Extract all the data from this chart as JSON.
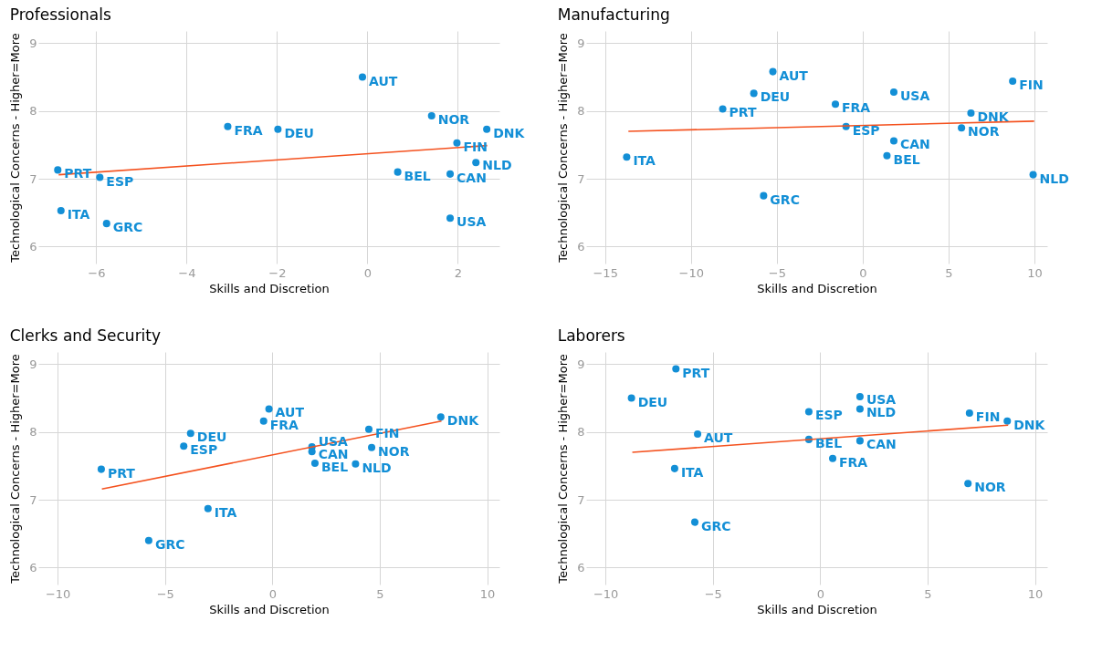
{
  "chart_data": [
    {
      "type": "scatter",
      "title": "Professionals",
      "xlabel": "Skills and Discretion",
      "ylabel": "Technological Concerns - Higher=More",
      "xlim": [
        -7.28,
        2.92
      ],
      "ylim": [
        5.75,
        9.18
      ],
      "xticks": [
        -6,
        -4,
        -2,
        0,
        2
      ],
      "yticks": [
        6,
        7,
        8,
        9
      ],
      "grid": true,
      "series": [
        {
          "marker": "circle",
          "color": "#138fd6",
          "x": [
            -6.85,
            -5.92,
            -6.78,
            -5.77,
            -3.09,
            -1.98,
            -0.11,
            1.42,
            2.64,
            1.98,
            2.4,
            0.67,
            1.83,
            1.83
          ],
          "values": [
            7.13,
            7.02,
            6.53,
            6.34,
            7.77,
            7.73,
            8.5,
            7.93,
            7.73,
            7.53,
            7.24,
            7.1,
            7.07,
            6.42
          ]
        },
        {
          "type": "line",
          "color": "#f4511e",
          "x": [
            -6.83,
            2.65
          ],
          "values": [
            7.06,
            7.49
          ]
        }
      ],
      "annotations": [
        {
          "text": "PRT",
          "x": -6.85,
          "y": 7.13
        },
        {
          "text": "ESP",
          "x": -5.92,
          "y": 7.02
        },
        {
          "text": "ITA",
          "x": -6.78,
          "y": 6.53
        },
        {
          "text": "GRC",
          "x": -5.77,
          "y": 6.34
        },
        {
          "text": "FRA",
          "x": -3.09,
          "y": 7.77
        },
        {
          "text": "DEU",
          "x": -1.98,
          "y": 7.73
        },
        {
          "text": "AUT",
          "x": -0.11,
          "y": 8.5
        },
        {
          "text": "NOR",
          "x": 1.42,
          "y": 7.93
        },
        {
          "text": "DNK",
          "x": 2.64,
          "y": 7.73
        },
        {
          "text": "FIN",
          "x": 1.98,
          "y": 7.53
        },
        {
          "text": "NLD",
          "x": 2.4,
          "y": 7.24
        },
        {
          "text": "BEL",
          "x": 0.67,
          "y": 7.1
        },
        {
          "text": "CAN",
          "x": 1.83,
          "y": 7.07
        },
        {
          "text": "USA",
          "x": 1.83,
          "y": 6.42
        }
      ]
    },
    {
      "type": "scatter",
      "title": "Manufacturing",
      "xlabel": "Skills and Discretion",
      "ylabel": "Technological Concerns - Higher=More",
      "xlim": [
        -16.1,
        10.74
      ],
      "ylim": [
        5.75,
        9.18
      ],
      "xticks": [
        -15,
        -10,
        -5,
        0,
        5,
        10
      ],
      "yticks": [
        6,
        7,
        8,
        9
      ],
      "grid": true,
      "series": [
        {
          "marker": "circle",
          "color": "#138fd6",
          "x": [
            -13.74,
            -8.15,
            -6.34,
            -5.23,
            -5.77,
            -1.59,
            -0.97,
            1.81,
            1.81,
            1.41,
            6.3,
            5.75,
            8.73,
            9.92
          ],
          "values": [
            7.32,
            8.03,
            8.26,
            8.58,
            6.75,
            8.1,
            7.77,
            8.28,
            7.56,
            7.34,
            7.97,
            7.75,
            8.44,
            7.06
          ]
        },
        {
          "type": "line",
          "color": "#f4511e",
          "x": [
            -13.64,
            9.98
          ],
          "values": [
            7.7,
            7.85
          ]
        }
      ],
      "annotations": [
        {
          "text": "ITA",
          "x": -13.74,
          "y": 7.32
        },
        {
          "text": "PRT",
          "x": -8.15,
          "y": 8.03
        },
        {
          "text": "DEU",
          "x": -6.34,
          "y": 8.26
        },
        {
          "text": "AUT",
          "x": -5.23,
          "y": 8.58
        },
        {
          "text": "GRC",
          "x": -5.77,
          "y": 6.75
        },
        {
          "text": "FRA",
          "x": -1.59,
          "y": 8.1
        },
        {
          "text": "ESP",
          "x": -0.97,
          "y": 7.77
        },
        {
          "text": "USA",
          "x": 1.81,
          "y": 8.28
        },
        {
          "text": "CAN",
          "x": 1.81,
          "y": 7.56
        },
        {
          "text": "BEL",
          "x": 1.41,
          "y": 7.34
        },
        {
          "text": "DNK",
          "x": 6.3,
          "y": 7.97
        },
        {
          "text": "NOR",
          "x": 5.75,
          "y": 7.75
        },
        {
          "text": "FIN",
          "x": 8.73,
          "y": 8.44
        },
        {
          "text": "NLD",
          "x": 9.92,
          "y": 7.06
        }
      ]
    },
    {
      "type": "scatter",
      "title": "Clerks and Security",
      "xlabel": "Skills and Discretion",
      "ylabel": "Technological Concerns - Higher=More",
      "xlim": [
        -10.9,
        10.57
      ],
      "ylim": [
        5.75,
        9.18
      ],
      "xticks": [
        -10,
        -5,
        0,
        5,
        10
      ],
      "yticks": [
        6,
        7,
        8,
        9
      ],
      "grid": true,
      "series": [
        {
          "marker": "circle",
          "color": "#138fd6",
          "x": [
            -7.97,
            -5.76,
            -3.0,
            -4.13,
            -3.81,
            -0.41,
            -0.16,
            1.84,
            1.84,
            1.98,
            3.87,
            4.62,
            4.49,
            7.84
          ],
          "values": [
            7.45,
            6.4,
            6.87,
            7.79,
            7.98,
            8.16,
            8.34,
            7.78,
            7.71,
            7.54,
            7.53,
            7.77,
            8.04,
            8.22
          ]
        },
        {
          "type": "line",
          "color": "#f4511e",
          "x": [
            -7.94,
            7.87
          ],
          "values": [
            7.16,
            8.16
          ]
        }
      ],
      "annotations": [
        {
          "text": "PRT",
          "x": -7.97,
          "y": 7.45
        },
        {
          "text": "GRC",
          "x": -5.76,
          "y": 6.4
        },
        {
          "text": "ITA",
          "x": -3.0,
          "y": 6.87
        },
        {
          "text": "ESP",
          "x": -4.13,
          "y": 7.79
        },
        {
          "text": "DEU",
          "x": -3.81,
          "y": 7.98
        },
        {
          "text": "FRA",
          "x": -0.41,
          "y": 8.16
        },
        {
          "text": "AUT",
          "x": -0.16,
          "y": 8.34
        },
        {
          "text": "USA",
          "x": 1.84,
          "y": 7.78
        },
        {
          "text": "CAN",
          "x": 1.84,
          "y": 7.71
        },
        {
          "text": "BEL",
          "x": 1.98,
          "y": 7.54
        },
        {
          "text": "NLD",
          "x": 3.87,
          "y": 7.53
        },
        {
          "text": "NOR",
          "x": 4.62,
          "y": 7.77
        },
        {
          "text": "FIN",
          "x": 4.49,
          "y": 8.04
        },
        {
          "text": "DNK",
          "x": 7.84,
          "y": 8.22
        }
      ]
    },
    {
      "type": "scatter",
      "title": "Laborers",
      "xlabel": "Skills and Discretion",
      "ylabel": "Technological Concerns - Higher=More",
      "xlim": [
        -10.9,
        10.57
      ],
      "ylim": [
        5.75,
        9.18
      ],
      "xticks": [
        -10,
        -5,
        0,
        5,
        10
      ],
      "yticks": [
        6,
        7,
        8,
        9
      ],
      "grid": true,
      "series": [
        {
          "marker": "circle",
          "color": "#138fd6",
          "x": [
            -6.72,
            -8.79,
            -5.71,
            -6.78,
            -5.84,
            -0.53,
            -0.53,
            1.85,
            1.85,
            1.85,
            0.58,
            6.95,
            8.71,
            6.88
          ],
          "values": [
            8.93,
            8.5,
            7.97,
            7.46,
            6.67,
            8.3,
            7.89,
            8.52,
            8.34,
            7.87,
            7.61,
            8.28,
            8.16,
            7.24
          ]
        },
        {
          "type": "line",
          "color": "#f4511e",
          "x": [
            -8.75,
            8.75
          ],
          "values": [
            7.7,
            8.1
          ]
        }
      ],
      "annotations": [
        {
          "text": "PRT",
          "x": -6.72,
          "y": 8.93
        },
        {
          "text": "DEU",
          "x": -8.79,
          "y": 8.5
        },
        {
          "text": "AUT",
          "x": -5.71,
          "y": 7.97
        },
        {
          "text": "ITA",
          "x": -6.78,
          "y": 7.46
        },
        {
          "text": "GRC",
          "x": -5.84,
          "y": 6.67
        },
        {
          "text": "ESP",
          "x": -0.53,
          "y": 8.3
        },
        {
          "text": "BEL",
          "x": -0.53,
          "y": 7.89
        },
        {
          "text": "USA",
          "x": 1.85,
          "y": 8.52
        },
        {
          "text": "NLD",
          "x": 1.85,
          "y": 8.34
        },
        {
          "text": "CAN",
          "x": 1.85,
          "y": 7.87
        },
        {
          "text": "FRA",
          "x": 0.58,
          "y": 7.61
        },
        {
          "text": "FIN",
          "x": 6.95,
          "y": 8.28
        },
        {
          "text": "DNK",
          "x": 8.71,
          "y": 8.16
        },
        {
          "text": "NOR",
          "x": 6.88,
          "y": 7.24
        }
      ]
    }
  ]
}
